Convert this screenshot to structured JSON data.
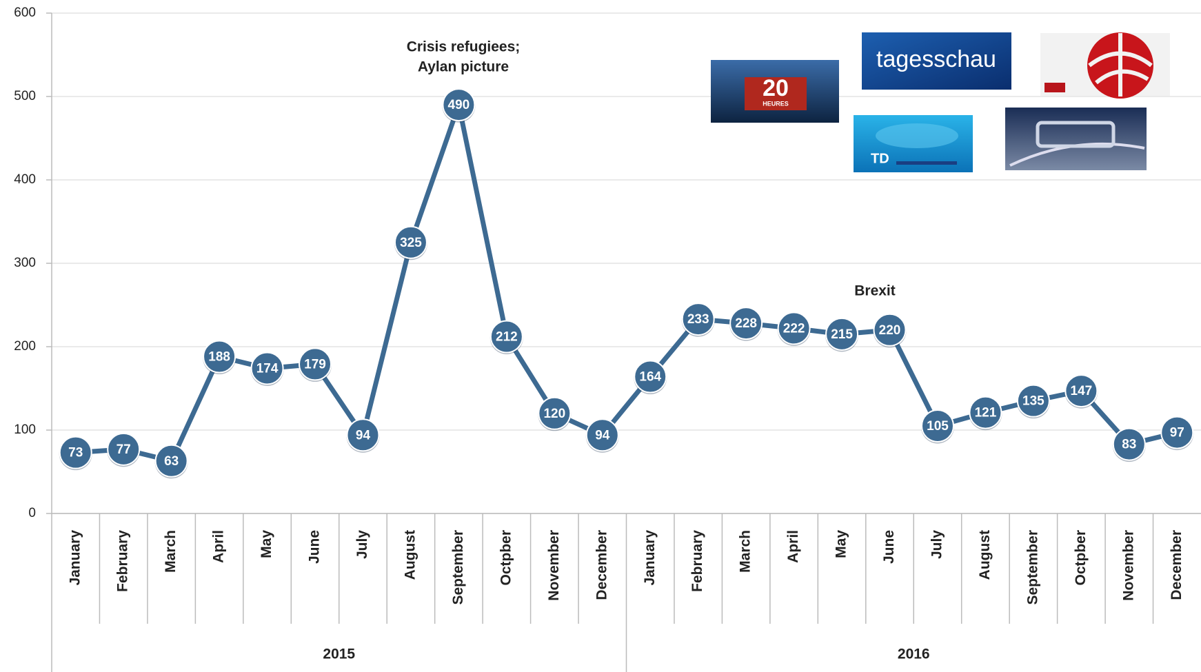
{
  "chart_data": {
    "type": "line",
    "categories": [
      "January",
      "February",
      "March",
      "April",
      "May",
      "June",
      "July",
      "August",
      "September",
      "Octpber",
      "November",
      "December",
      "January",
      "February",
      "March",
      "April",
      "May",
      "June",
      "July",
      "August",
      "September",
      "Octpber",
      "November",
      "December"
    ],
    "groups": [
      "2015",
      "2016"
    ],
    "series": [
      {
        "color": "#3d6a92",
        "values": [
          73,
          77,
          63,
          188,
          174,
          179,
          94,
          325,
          490,
          212,
          120,
          94,
          164,
          233,
          228,
          222,
          215,
          220,
          105,
          121,
          135,
          147,
          83,
          97
        ]
      }
    ],
    "ylim": [
      0,
      600
    ],
    "yticks": [
      0,
      100,
      200,
      300,
      400,
      500,
      600
    ],
    "grid": true,
    "annotations": [
      "Crisis refugiees;",
      "Aylan picture",
      "Brexit"
    ],
    "logo_texts": [
      "20",
      "HEURES",
      "tagesschau",
      "TD"
    ]
  }
}
